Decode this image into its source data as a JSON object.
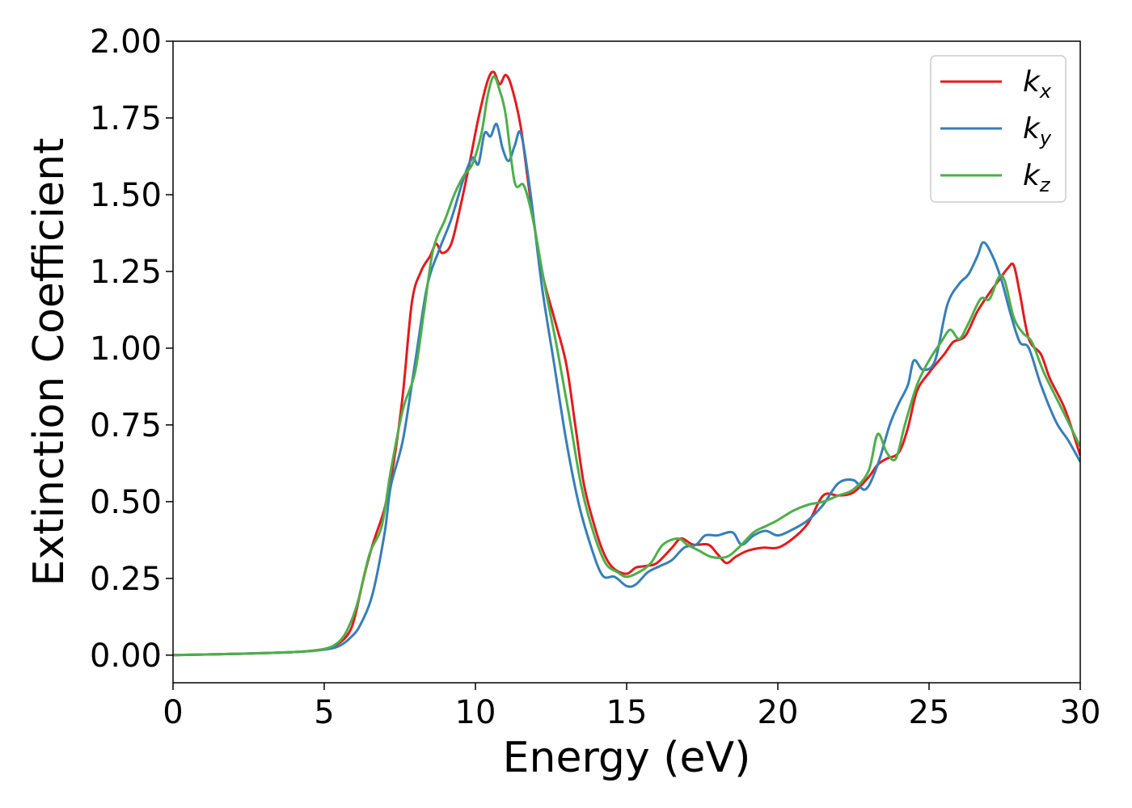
{
  "chart_data": {
    "type": "line",
    "xlabel": "Energy (eV)",
    "ylabel": "Extinction Coefficient",
    "xlim": [
      0,
      30
    ],
    "ylim": [
      -0.09,
      2.0
    ],
    "xticks": [
      "0",
      "5",
      "10",
      "15",
      "20",
      "25",
      "30"
    ],
    "yticks": [
      "0.00",
      "0.25",
      "0.50",
      "0.75",
      "1.00",
      "1.25",
      "1.50",
      "1.75",
      "2.00"
    ],
    "grid": false,
    "legend_position": "top-right",
    "series": [
      {
        "name": "k_x",
        "color": "#e41a1c",
        "points": [
          [
            0,
            0.0
          ],
          [
            2,
            0.004
          ],
          [
            4,
            0.01
          ],
          [
            5,
            0.02
          ],
          [
            5.5,
            0.04
          ],
          [
            5.8,
            0.07
          ],
          [
            6,
            0.12
          ],
          [
            6.3,
            0.25
          ],
          [
            6.6,
            0.36
          ],
          [
            7,
            0.48
          ],
          [
            7.3,
            0.63
          ],
          [
            7.6,
            0.85
          ],
          [
            7.9,
            1.15
          ],
          [
            8.2,
            1.25
          ],
          [
            8.5,
            1.3
          ],
          [
            8.7,
            1.34
          ],
          [
            8.9,
            1.31
          ],
          [
            9.2,
            1.34
          ],
          [
            9.5,
            1.46
          ],
          [
            9.8,
            1.6
          ],
          [
            10.1,
            1.75
          ],
          [
            10.4,
            1.87
          ],
          [
            10.6,
            1.9
          ],
          [
            10.8,
            1.86
          ],
          [
            11.0,
            1.89
          ],
          [
            11.2,
            1.85
          ],
          [
            11.5,
            1.72
          ],
          [
            11.8,
            1.5
          ],
          [
            12.2,
            1.25
          ],
          [
            12.6,
            1.1
          ],
          [
            13.0,
            0.95
          ],
          [
            13.3,
            0.75
          ],
          [
            13.6,
            0.55
          ],
          [
            14.0,
            0.4
          ],
          [
            14.3,
            0.32
          ],
          [
            14.6,
            0.28
          ],
          [
            15.0,
            0.265
          ],
          [
            15.3,
            0.285
          ],
          [
            15.6,
            0.29
          ],
          [
            16.0,
            0.3
          ],
          [
            16.5,
            0.35
          ],
          [
            16.8,
            0.38
          ],
          [
            17.2,
            0.36
          ],
          [
            17.7,
            0.36
          ],
          [
            18.0,
            0.33
          ],
          [
            18.3,
            0.3
          ],
          [
            18.6,
            0.32
          ],
          [
            19.0,
            0.34
          ],
          [
            19.5,
            0.35
          ],
          [
            20.0,
            0.35
          ],
          [
            20.5,
            0.38
          ],
          [
            21.0,
            0.43
          ],
          [
            21.5,
            0.52
          ],
          [
            22.0,
            0.52
          ],
          [
            22.5,
            0.53
          ],
          [
            23.0,
            0.58
          ],
          [
            23.3,
            0.62
          ],
          [
            23.6,
            0.64
          ],
          [
            24.0,
            0.66
          ],
          [
            24.3,
            0.74
          ],
          [
            24.6,
            0.86
          ],
          [
            25.0,
            0.92
          ],
          [
            25.5,
            0.98
          ],
          [
            25.8,
            1.02
          ],
          [
            26.2,
            1.04
          ],
          [
            26.6,
            1.12
          ],
          [
            27.0,
            1.18
          ],
          [
            27.3,
            1.22
          ],
          [
            27.6,
            1.26
          ],
          [
            27.8,
            1.27
          ],
          [
            28.0,
            1.18
          ],
          [
            28.3,
            1.03
          ],
          [
            28.7,
            0.98
          ],
          [
            29.0,
            0.9
          ],
          [
            29.5,
            0.8
          ],
          [
            30.0,
            0.65
          ]
        ]
      },
      {
        "name": "k_y",
        "color": "#377eb8",
        "points": [
          [
            0,
            0.0
          ],
          [
            2,
            0.004
          ],
          [
            4,
            0.01
          ],
          [
            5,
            0.018
          ],
          [
            5.5,
            0.03
          ],
          [
            5.9,
            0.06
          ],
          [
            6.2,
            0.1
          ],
          [
            6.6,
            0.2
          ],
          [
            7,
            0.4
          ],
          [
            7.2,
            0.55
          ],
          [
            7.6,
            0.7
          ],
          [
            8.0,
            0.95
          ],
          [
            8.4,
            1.2
          ],
          [
            8.8,
            1.32
          ],
          [
            9.2,
            1.42
          ],
          [
            9.6,
            1.55
          ],
          [
            9.9,
            1.62
          ],
          [
            10.1,
            1.6
          ],
          [
            10.3,
            1.7
          ],
          [
            10.5,
            1.69
          ],
          [
            10.7,
            1.73
          ],
          [
            10.9,
            1.65
          ],
          [
            11.1,
            1.61
          ],
          [
            11.3,
            1.66
          ],
          [
            11.5,
            1.7
          ],
          [
            11.8,
            1.52
          ],
          [
            12.2,
            1.2
          ],
          [
            12.6,
            0.95
          ],
          [
            13.0,
            0.7
          ],
          [
            13.4,
            0.5
          ],
          [
            13.8,
            0.36
          ],
          [
            14.2,
            0.26
          ],
          [
            14.6,
            0.255
          ],
          [
            15.0,
            0.225
          ],
          [
            15.3,
            0.23
          ],
          [
            15.7,
            0.27
          ],
          [
            16.1,
            0.29
          ],
          [
            16.5,
            0.31
          ],
          [
            16.9,
            0.35
          ],
          [
            17.3,
            0.36
          ],
          [
            17.6,
            0.39
          ],
          [
            18.0,
            0.39
          ],
          [
            18.5,
            0.4
          ],
          [
            18.8,
            0.36
          ],
          [
            19.2,
            0.39
          ],
          [
            19.6,
            0.405
          ],
          [
            20.0,
            0.39
          ],
          [
            20.5,
            0.41
          ],
          [
            21.0,
            0.44
          ],
          [
            21.5,
            0.49
          ],
          [
            22.0,
            0.56
          ],
          [
            22.5,
            0.57
          ],
          [
            22.9,
            0.54
          ],
          [
            23.3,
            0.62
          ],
          [
            23.7,
            0.75
          ],
          [
            24.0,
            0.82
          ],
          [
            24.3,
            0.88
          ],
          [
            24.5,
            0.96
          ],
          [
            24.8,
            0.93
          ],
          [
            25.2,
            0.96
          ],
          [
            25.6,
            1.14
          ],
          [
            26.0,
            1.21
          ],
          [
            26.3,
            1.24
          ],
          [
            26.6,
            1.3
          ],
          [
            26.8,
            1.345
          ],
          [
            27.1,
            1.3
          ],
          [
            27.4,
            1.22
          ],
          [
            27.7,
            1.11
          ],
          [
            28.0,
            1.02
          ],
          [
            28.3,
            1.0
          ],
          [
            28.7,
            0.88
          ],
          [
            29.2,
            0.76
          ],
          [
            29.6,
            0.7
          ],
          [
            30.0,
            0.63
          ]
        ]
      },
      {
        "name": "k_z",
        "color": "#4daf4a",
        "points": [
          [
            0,
            0.0
          ],
          [
            2,
            0.004
          ],
          [
            4,
            0.01
          ],
          [
            5,
            0.02
          ],
          [
            5.5,
            0.045
          ],
          [
            5.8,
            0.09
          ],
          [
            6.1,
            0.17
          ],
          [
            6.5,
            0.33
          ],
          [
            6.9,
            0.42
          ],
          [
            7.2,
            0.6
          ],
          [
            7.6,
            0.8
          ],
          [
            8.0,
            0.92
          ],
          [
            8.3,
            1.12
          ],
          [
            8.6,
            1.32
          ],
          [
            9.0,
            1.42
          ],
          [
            9.3,
            1.5
          ],
          [
            9.6,
            1.56
          ],
          [
            9.9,
            1.6
          ],
          [
            10.2,
            1.7
          ],
          [
            10.4,
            1.82
          ],
          [
            10.6,
            1.885
          ],
          [
            10.8,
            1.84
          ],
          [
            11.0,
            1.76
          ],
          [
            11.3,
            1.54
          ],
          [
            11.6,
            1.53
          ],
          [
            11.9,
            1.42
          ],
          [
            12.3,
            1.2
          ],
          [
            12.7,
            1.0
          ],
          [
            13.1,
            0.78
          ],
          [
            13.5,
            0.55
          ],
          [
            13.9,
            0.4
          ],
          [
            14.3,
            0.3
          ],
          [
            14.7,
            0.27
          ],
          [
            15.0,
            0.255
          ],
          [
            15.4,
            0.27
          ],
          [
            15.8,
            0.3
          ],
          [
            16.2,
            0.36
          ],
          [
            16.7,
            0.38
          ],
          [
            17.0,
            0.36
          ],
          [
            17.4,
            0.34
          ],
          [
            17.8,
            0.32
          ],
          [
            18.3,
            0.32
          ],
          [
            18.7,
            0.35
          ],
          [
            19.2,
            0.4
          ],
          [
            19.6,
            0.42
          ],
          [
            20.0,
            0.44
          ],
          [
            20.5,
            0.47
          ],
          [
            21.0,
            0.49
          ],
          [
            21.5,
            0.5
          ],
          [
            22.0,
            0.52
          ],
          [
            22.5,
            0.54
          ],
          [
            23.0,
            0.6
          ],
          [
            23.3,
            0.72
          ],
          [
            23.6,
            0.66
          ],
          [
            23.9,
            0.64
          ],
          [
            24.2,
            0.75
          ],
          [
            24.6,
            0.88
          ],
          [
            25.0,
            0.96
          ],
          [
            25.4,
            1.02
          ],
          [
            25.7,
            1.06
          ],
          [
            26.0,
            1.03
          ],
          [
            26.3,
            1.08
          ],
          [
            26.7,
            1.16
          ],
          [
            27.0,
            1.16
          ],
          [
            27.3,
            1.23
          ],
          [
            27.5,
            1.22
          ],
          [
            27.8,
            1.1
          ],
          [
            28.1,
            1.05
          ],
          [
            28.4,
            1.02
          ],
          [
            28.8,
            0.92
          ],
          [
            29.3,
            0.82
          ],
          [
            30.0,
            0.68
          ]
        ]
      }
    ]
  }
}
